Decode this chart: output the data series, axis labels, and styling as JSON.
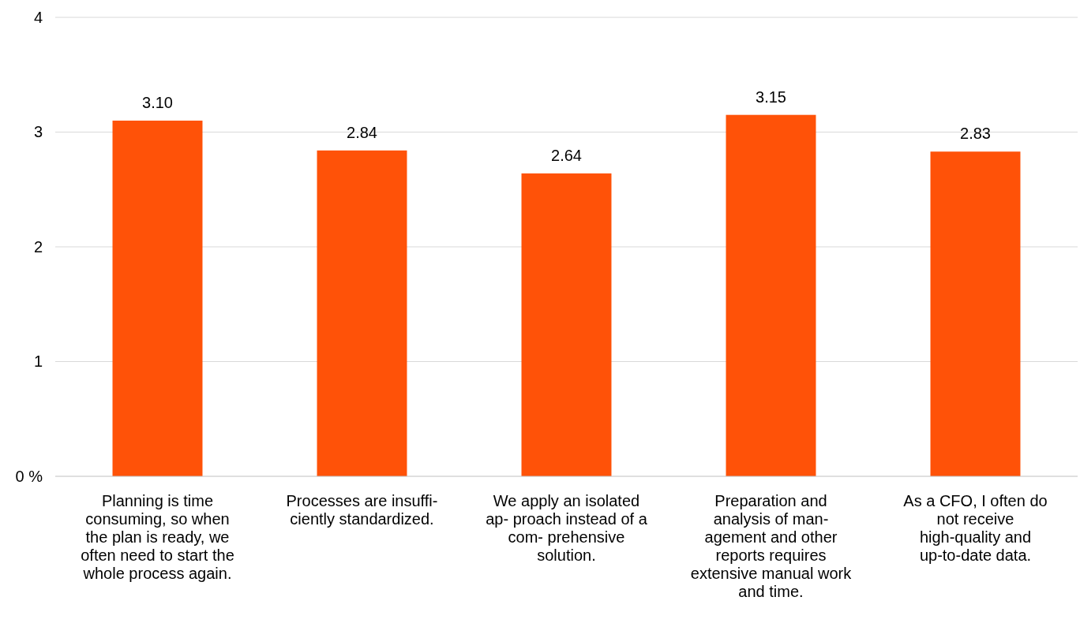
{
  "chart_data": {
    "type": "bar",
    "categories": [
      "Planning is time consuming, so when the plan is ready, we often need to start the whole process again.",
      "Processes are insuffi- ciently standardized.",
      "We apply an isolated ap- proach instead of a com- prehensive solution.",
      "Preparation and analysis of man- agement and other reports requires extensive manual work and time.",
      "As a CFO, I often do not receive high-quality and up-to-date data."
    ],
    "values": [
      3.1,
      2.84,
      2.64,
      3.15,
      2.83
    ],
    "value_labels": [
      "3.10",
      "2.84",
      "2.64",
      "3.15",
      "2.83"
    ],
    "color": "#ff5208",
    "ylim": [
      0,
      4
    ],
    "yticks": [
      {
        "value": 0,
        "label": "0 %"
      },
      1,
      2,
      3,
      4
    ],
    "grid": "y"
  }
}
